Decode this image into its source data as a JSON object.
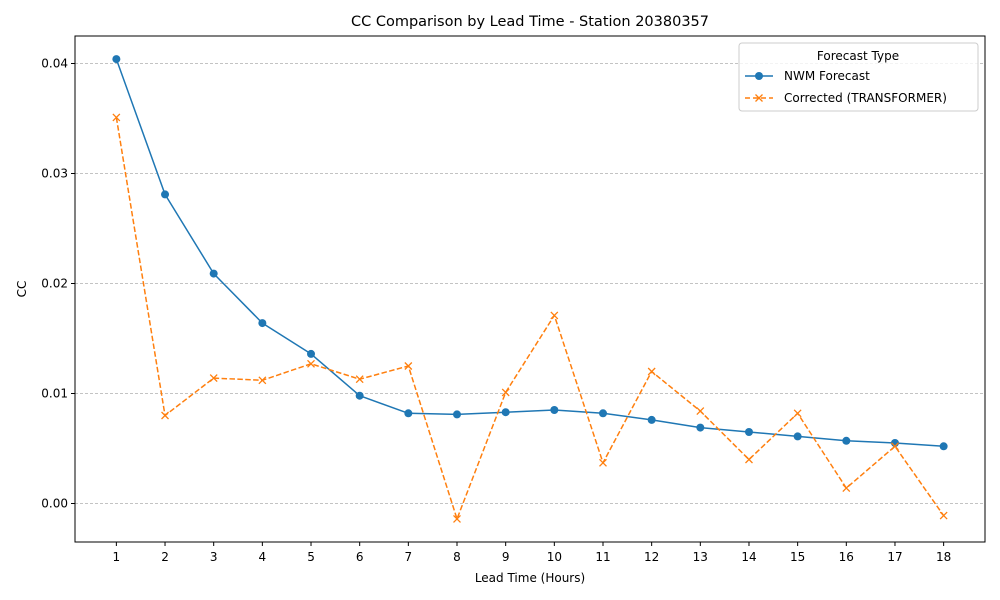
{
  "chart_data": {
    "type": "line",
    "title": "CC Comparison by Lead Time - Station 20380357",
    "xlabel": "Lead Time (Hours)",
    "ylabel": "CC",
    "x": [
      1,
      2,
      3,
      4,
      5,
      6,
      7,
      8,
      9,
      10,
      11,
      12,
      13,
      14,
      15,
      16,
      17,
      18
    ],
    "xlim": [
      0.15,
      18.85
    ],
    "ylim": [
      -0.0035,
      0.0425
    ],
    "yticks": [
      "0.00",
      "0.01",
      "0.02",
      "0.03",
      "0.04"
    ],
    "ytick_values": [
      0.0,
      0.01,
      0.02,
      0.03,
      0.04
    ],
    "grid": "horizontal dashed",
    "legend": {
      "title": "Forecast Type",
      "placement": "top-right"
    },
    "series": [
      {
        "name": "NWM Forecast",
        "color": "#1f77b4",
        "line_style": "solid",
        "marker": "circle",
        "values": [
          0.0404,
          0.0281,
          0.0209,
          0.0164,
          0.0136,
          0.0098,
          0.0082,
          0.0081,
          0.0083,
          0.0085,
          0.0082,
          0.0076,
          0.0069,
          0.0065,
          0.0061,
          0.0057,
          0.0055,
          0.0052
        ]
      },
      {
        "name": "Corrected (TRANSFORMER)",
        "color": "#ff7f0e",
        "line_style": "dashed",
        "marker": "x",
        "values": [
          0.0351,
          0.008,
          0.0114,
          0.0112,
          0.0127,
          0.0113,
          0.0125,
          -0.0014,
          0.0101,
          0.0171,
          0.0037,
          0.012,
          0.0084,
          0.004,
          0.0082,
          0.0014,
          0.0052,
          -0.0011
        ]
      }
    ]
  }
}
